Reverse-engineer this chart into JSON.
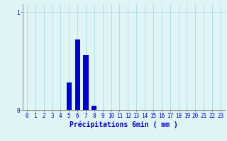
{
  "hours": [
    0,
    1,
    2,
    3,
    4,
    5,
    6,
    7,
    8,
    9,
    10,
    11,
    12,
    13,
    14,
    15,
    16,
    17,
    18,
    19,
    20,
    21,
    22,
    23
  ],
  "values": [
    0,
    0,
    0,
    0,
    0,
    0.28,
    0.72,
    0.56,
    0.04,
    0,
    0,
    0,
    0,
    0,
    0,
    0,
    0,
    0,
    0,
    0,
    0,
    0,
    0,
    0
  ],
  "bar_color": "#0000cc",
  "background_color": "#dff5f5",
  "grid_color": "#b0d8d8",
  "axis_color": "#888888",
  "text_color": "#0000cc",
  "xlabel": "Précipitations 6min ( mm )",
  "ylim": [
    0,
    1.08
  ],
  "yticks": [
    0,
    1
  ],
  "xlim": [
    -0.5,
    23.5
  ],
  "label_fontsize": 7,
  "tick_fontsize": 5.5,
  "bar_width": 0.6
}
